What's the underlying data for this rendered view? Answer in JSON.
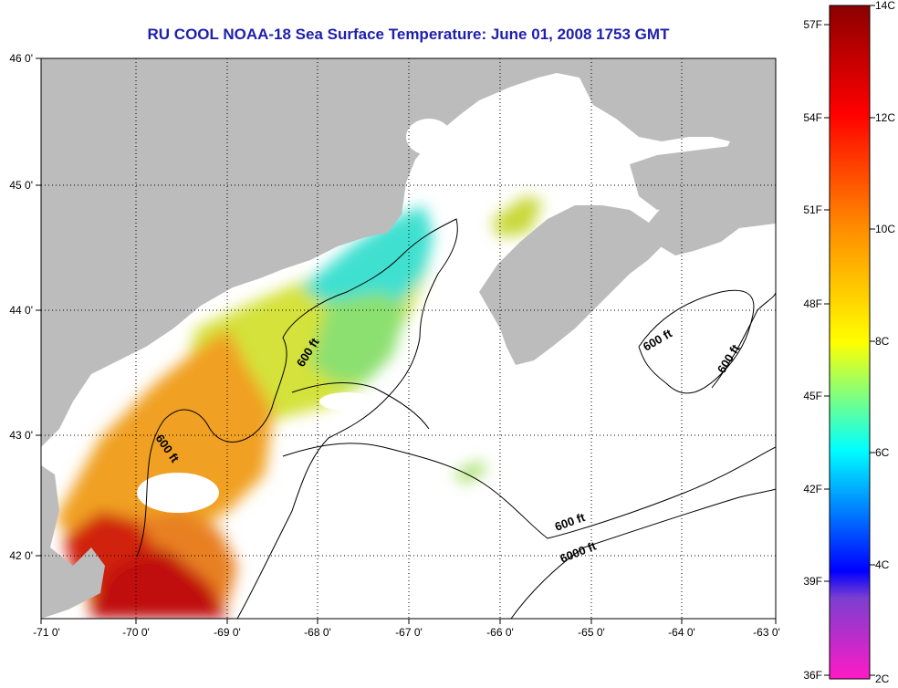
{
  "title": "RU COOL  NOAA-18  Sea Surface Temperature:  June 01, 2008 1753 GMT",
  "colors": {
    "land": "#bcbcbc",
    "ocean_no_data": "#ffffff",
    "contour_line": "#000000",
    "grid": "#000000"
  },
  "axes": {
    "longitude_ticks": [
      "-71 0'",
      "-70 0'",
      "-69 0'",
      "-68 0'",
      "-67 0'",
      "-66 0'",
      "-65 0'",
      "-64 0'",
      "-63 0'"
    ],
    "latitude_ticks": [
      "46 0'",
      "45 0'",
      "44 0'",
      "43 0'",
      "42 0'"
    ],
    "lon_range": [
      -71,
      -63
    ],
    "lat_range": [
      41.5,
      46.05
    ]
  },
  "contour_labels": [
    {
      "text": "600 ft"
    },
    {
      "text": "600 ft"
    },
    {
      "text": "600 ft"
    },
    {
      "text": "600 ft"
    },
    {
      "text": "600 ft"
    },
    {
      "text": "6000 ft"
    }
  ],
  "colorbar": {
    "fahrenheit_labels": [
      "57F",
      "54F",
      "51F",
      "48F",
      "45F",
      "42F",
      "39F",
      "36F"
    ],
    "celsius_labels": [
      "14C",
      "12C",
      "10C",
      "8C",
      "6C",
      "4C",
      "2C"
    ],
    "range_c": [
      2,
      14
    ],
    "stops": [
      "#8b0000",
      "#ff0000",
      "#ff8c00",
      "#ffff00",
      "#00ffff",
      "#0000ff",
      "#7b3fd0",
      "#ff1ac6"
    ]
  }
}
